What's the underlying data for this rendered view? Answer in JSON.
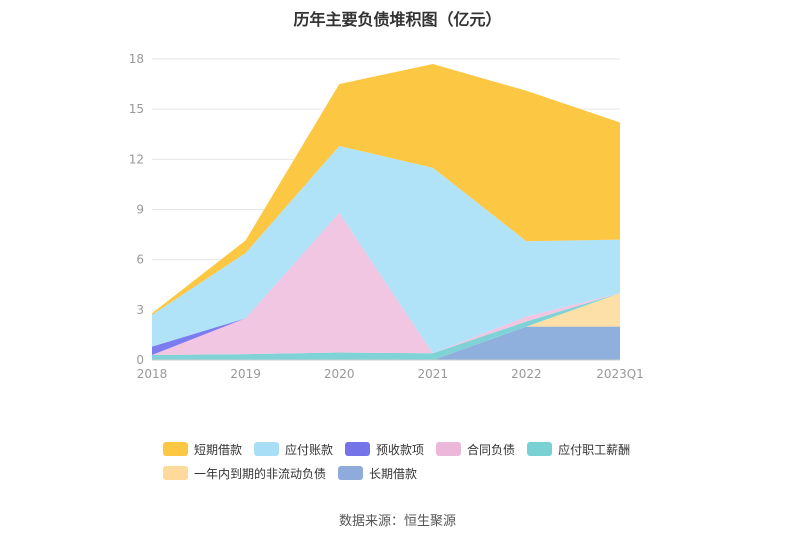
{
  "title": "历年主要负债堆积图（亿元）",
  "source": "数据来源：恒生聚源",
  "chart_data": {
    "type": "area",
    "stacked": true,
    "categories": [
      "2018",
      "2019",
      "2020",
      "2021",
      "2022",
      "2023Q1"
    ],
    "ylim": [
      0,
      18
    ],
    "yticks": [
      0,
      3,
      6,
      9,
      12,
      15,
      18
    ],
    "grid": true,
    "legend_position": "bottom",
    "series": [
      {
        "name": "长期借款",
        "color": "#8fb0dc",
        "values": [
          0,
          0,
          0,
          0,
          2.0,
          2.0
        ]
      },
      {
        "name": "一年内到期的非流动负债",
        "color": "#fddfa8",
        "values": [
          0,
          0,
          0,
          0,
          0,
          2.0
        ]
      },
      {
        "name": "应付职工薪酬",
        "color": "#7fd3d6",
        "values": [
          0.3,
          0.35,
          0.45,
          0.4,
          0.3,
          0
        ]
      },
      {
        "name": "合同负债",
        "color": "#f0c6e2",
        "values": [
          0,
          2.15,
          8.35,
          0,
          0.3,
          0
        ]
      },
      {
        "name": "预收款项",
        "color": "#7b7cf0",
        "values": [
          0.5,
          0,
          0,
          0,
          0,
          0
        ]
      },
      {
        "name": "应付账款",
        "color": "#b0e2f8",
        "values": [
          1.9,
          3.9,
          4.0,
          11.1,
          4.5,
          3.2
        ]
      },
      {
        "name": "短期借款",
        "color": "#fcc844",
        "values": [
          0.1,
          0.75,
          3.7,
          6.2,
          9.0,
          7.0
        ]
      }
    ],
    "legend": [
      {
        "name": "短期借款",
        "color": "#fcc844"
      },
      {
        "name": "应付账款",
        "color": "#a8dff7"
      },
      {
        "name": "预收款项",
        "color": "#7473e8"
      },
      {
        "name": "合同负债",
        "color": "#edb7da"
      },
      {
        "name": "应付职工薪酬",
        "color": "#79d1d4"
      },
      {
        "name": "一年内到期的非流动负债",
        "color": "#fdd99b"
      },
      {
        "name": "长期借款",
        "color": "#8fabdb"
      }
    ]
  }
}
